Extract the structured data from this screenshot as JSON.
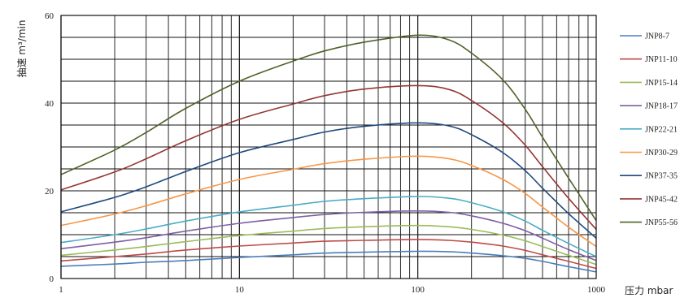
{
  "chart_data": {
    "type": "line",
    "xscale": "log",
    "xlim": [
      1,
      1000
    ],
    "ylim": [
      0,
      60
    ],
    "xlabel": "压力 mbar",
    "ylabel": "抽速 m³/min",
    "grid": true,
    "legend": "right",
    "x_ticks": [
      "1",
      "10",
      "100",
      "1000"
    ],
    "y_ticks": [
      "0",
      "20",
      "40",
      "60"
    ],
    "x": [
      1,
      2,
      3,
      5,
      10,
      20,
      30,
      50,
      100,
      150,
      200,
      300,
      400,
      500,
      700,
      1000
    ],
    "series": [
      {
        "name": "JNP8-7",
        "color": "#4a7ebb",
        "values": [
          2.8,
          3.3,
          3.7,
          4.1,
          4.8,
          5.4,
          5.8,
          6.0,
          6.2,
          6.1,
          5.8,
          5.2,
          4.6,
          3.9,
          2.7,
          1.5
        ]
      },
      {
        "name": "JNP11-10",
        "color": "#be4b48",
        "values": [
          4.0,
          5.0,
          5.6,
          6.5,
          7.4,
          8.1,
          8.5,
          8.7,
          8.9,
          8.7,
          8.3,
          7.4,
          6.4,
          5.4,
          3.9,
          2.3
        ]
      },
      {
        "name": "JNP15-14",
        "color": "#9bbb59",
        "values": [
          5.3,
          6.5,
          7.3,
          8.4,
          9.8,
          10.8,
          11.4,
          11.8,
          12.1,
          11.8,
          11.2,
          9.9,
          8.6,
          7.3,
          5.3,
          3.2
        ]
      },
      {
        "name": "JNP18-17",
        "color": "#7e5fa4",
        "values": [
          6.8,
          8.3,
          9.3,
          10.8,
          12.6,
          13.9,
          14.6,
          15.1,
          15.4,
          15.1,
          14.3,
          12.6,
          10.9,
          9.2,
          6.6,
          4.1
        ]
      },
      {
        "name": "JNP22-21",
        "color": "#4bacc6",
        "values": [
          8.2,
          10.0,
          11.3,
          13.1,
          15.2,
          16.7,
          17.6,
          18.2,
          18.7,
          18.3,
          17.3,
          15.2,
          13.1,
          11.0,
          8.0,
          5.0
        ]
      },
      {
        "name": "JNP30-29",
        "color": "#f79646",
        "values": [
          12.1,
          14.7,
          16.6,
          19.3,
          22.6,
          24.9,
          26.2,
          27.2,
          27.9,
          27.3,
          25.8,
          22.6,
          19.4,
          16.3,
          11.7,
          7.3
        ]
      },
      {
        "name": "JNP37-35",
        "color": "#1f497d",
        "values": [
          15.2,
          18.5,
          20.9,
          24.4,
          28.7,
          31.7,
          33.4,
          34.7,
          35.5,
          34.8,
          32.8,
          28.7,
          24.6,
          20.6,
          14.8,
          9.2
        ]
      },
      {
        "name": "JNP45-42",
        "color": "#953734",
        "values": [
          20.2,
          24.3,
          27.3,
          31.4,
          36.3,
          39.8,
          41.7,
          43.2,
          44.0,
          43.1,
          40.6,
          35.5,
          30.4,
          25.5,
          18.3,
          11.2
        ]
      },
      {
        "name": "JNP55-56",
        "color": "#4f6228",
        "values": [
          23.7,
          29.3,
          33.3,
          38.8,
          45.0,
          49.6,
          51.9,
          53.9,
          55.5,
          54.4,
          51.4,
          45.3,
          38.6,
          32.2,
          22.9,
          13.2
        ]
      }
    ]
  }
}
